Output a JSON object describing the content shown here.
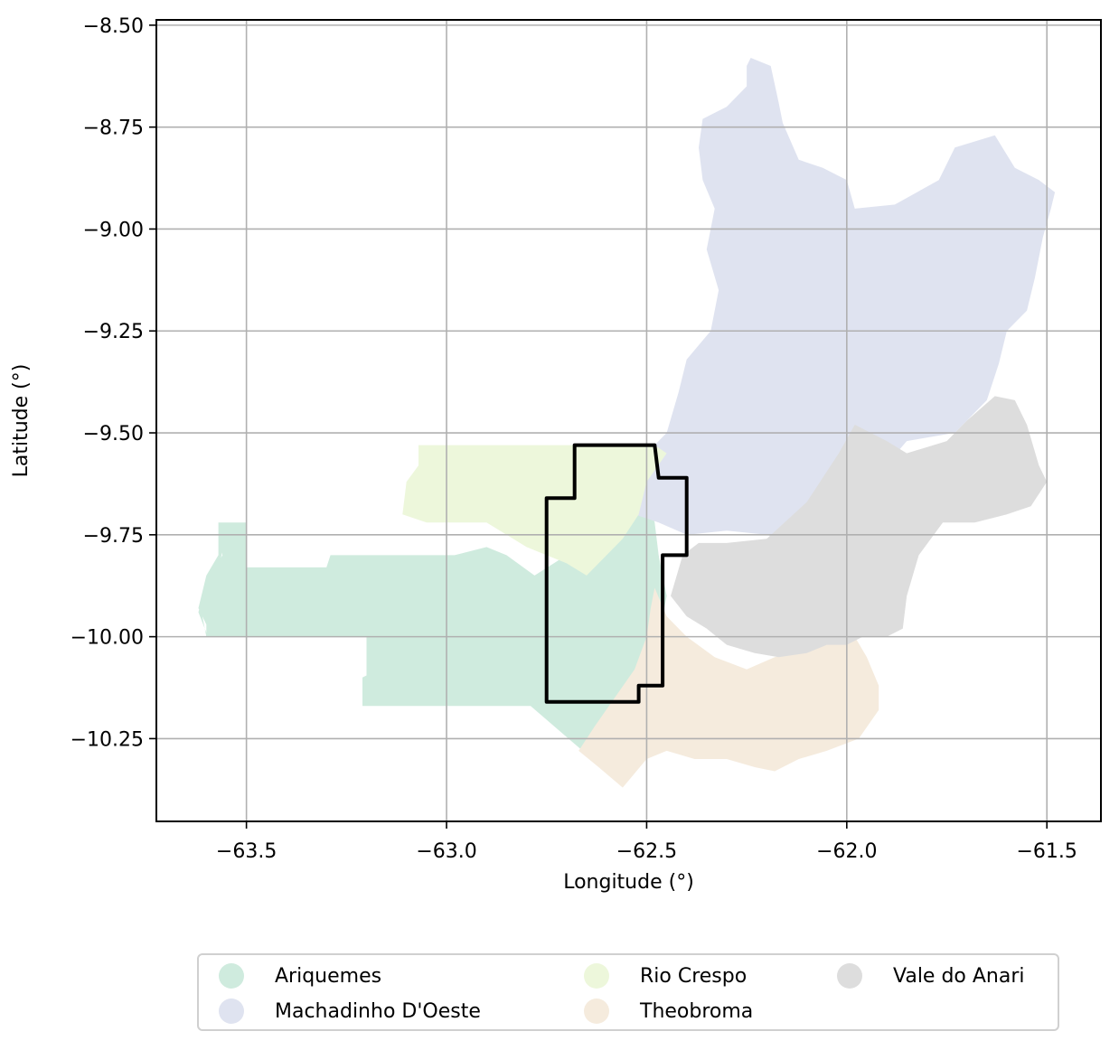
{
  "chart_data": {
    "type": "map",
    "xlabel": "Longitude (°)",
    "ylabel": "Latitude (°)",
    "xlim": [
      -63.725,
      -61.365
    ],
    "ylim": [
      -10.453,
      -8.487
    ],
    "xticks": [
      -63.5,
      -63.0,
      -62.5,
      -62.0,
      -61.5
    ],
    "xtick_labels": [
      "−63.5",
      "−63.0",
      "−62.5",
      "−62.0",
      "−61.5"
    ],
    "yticks": [
      -8.5,
      -8.75,
      -9.0,
      -9.25,
      -9.5,
      -9.75,
      -10.0,
      -10.25
    ],
    "ytick_labels": [
      "−8.50",
      "−8.75",
      "−9.00",
      "−9.25",
      "−9.50",
      "−9.75",
      "−10.00",
      "−10.25"
    ],
    "grid": true,
    "legend_placement": "bottom-center",
    "regions": [
      {
        "name": "Ariquemes",
        "color": "#cfebde",
        "polygon": [
          [
            -63.5,
            -9.72
          ],
          [
            -63.55,
            -9.72
          ],
          [
            -63.56,
            -9.79
          ],
          [
            -63.58,
            -9.88
          ],
          [
            -63.61,
            -9.95
          ],
          [
            -63.6,
            -10.0
          ],
          [
            -63.05,
            -10.0
          ],
          [
            -63.0,
            -10.04
          ],
          [
            -62.97,
            -10.14
          ],
          [
            -62.9,
            -10.1
          ],
          [
            -62.88,
            -10.05
          ],
          [
            -62.78,
            -10.04
          ],
          [
            -62.75,
            -10.02
          ],
          [
            -62.74,
            -9.88
          ],
          [
            -62.7,
            -9.75
          ],
          [
            -62.68,
            -9.75
          ],
          [
            -62.65,
            -9.85
          ],
          [
            -62.58,
            -9.85
          ],
          [
            -62.55,
            -9.75
          ],
          [
            -62.5,
            -9.74
          ],
          [
            -62.47,
            -9.87
          ],
          [
            -62.49,
            -9.98
          ],
          [
            -62.53,
            -10.1
          ],
          [
            -62.58,
            -10.2
          ],
          [
            -62.63,
            -10.25
          ],
          [
            -62.66,
            -10.28
          ],
          [
            -62.79,
            -10.17
          ],
          [
            -63.2,
            -10.17
          ],
          [
            -63.2,
            -10.0
          ],
          [
            -63.05,
            -10.0
          ],
          [
            -63.6,
            -10.0
          ],
          [
            -63.6,
            -9.97
          ],
          [
            -63.62,
            -9.93
          ],
          [
            -63.6,
            -9.85
          ],
          [
            -63.57,
            -9.8
          ],
          [
            -63.57,
            -9.72
          ],
          [
            -63.5,
            -9.72
          ],
          [
            -63.5,
            -9.83
          ],
          [
            -63.3,
            -9.83
          ],
          [
            -63.29,
            -9.8
          ],
          [
            -62.98,
            -9.8
          ],
          [
            -62.9,
            -9.78
          ],
          [
            -62.85,
            -9.8
          ],
          [
            -62.78,
            -9.85
          ],
          [
            -62.7,
            -9.8
          ],
          [
            -62.74,
            -9.73
          ],
          [
            -62.65,
            -9.7
          ],
          [
            -62.58,
            -9.62
          ],
          [
            -62.52,
            -9.55
          ],
          [
            -62.5,
            -9.65
          ],
          [
            -62.48,
            -9.72
          ],
          [
            -62.47,
            -9.8
          ],
          [
            -62.45,
            -9.9
          ],
          [
            -62.47,
            -10.0
          ],
          [
            -62.48,
            -10.1
          ],
          [
            -62.55,
            -10.2
          ],
          [
            -62.62,
            -10.25
          ],
          [
            -62.66,
            -10.28
          ],
          [
            -62.7,
            -10.24
          ],
          [
            -62.78,
            -10.17
          ],
          [
            -63.21,
            -10.17
          ],
          [
            -63.21,
            -10.1
          ],
          [
            -63.17,
            -10.08
          ],
          [
            -63.15,
            -10.0
          ],
          [
            -63.6,
            -10.0
          ],
          [
            -63.6,
            -9.99
          ],
          [
            -63.62,
            -9.94
          ],
          [
            -63.6,
            -9.87
          ],
          [
            -63.56,
            -9.8
          ],
          [
            -63.57,
            -9.72
          ]
        ]
      },
      {
        "name": "Machadinho D'Oeste",
        "color": "#dfe3f0",
        "polygon": [
          [
            -62.24,
            -8.58
          ],
          [
            -62.19,
            -8.6
          ],
          [
            -62.17,
            -8.69
          ],
          [
            -62.16,
            -8.74
          ],
          [
            -62.12,
            -8.83
          ],
          [
            -62.06,
            -8.85
          ],
          [
            -62.0,
            -8.88
          ],
          [
            -61.98,
            -8.95
          ],
          [
            -61.88,
            -8.94
          ],
          [
            -61.77,
            -8.88
          ],
          [
            -61.73,
            -8.8
          ],
          [
            -61.63,
            -8.77
          ],
          [
            -61.58,
            -8.85
          ],
          [
            -61.52,
            -8.88
          ],
          [
            -61.48,
            -8.91
          ],
          [
            -61.49,
            -8.95
          ],
          [
            -61.51,
            -9.02
          ],
          [
            -61.53,
            -9.12
          ],
          [
            -61.55,
            -9.2
          ],
          [
            -61.6,
            -9.25
          ],
          [
            -61.62,
            -9.33
          ],
          [
            -61.65,
            -9.42
          ],
          [
            -61.73,
            -9.5
          ],
          [
            -61.85,
            -9.52
          ],
          [
            -61.92,
            -9.6
          ],
          [
            -61.93,
            -9.72
          ],
          [
            -61.97,
            -9.78
          ],
          [
            -62.05,
            -9.8
          ],
          [
            -62.12,
            -9.78
          ],
          [
            -62.2,
            -9.75
          ],
          [
            -62.3,
            -9.74
          ],
          [
            -62.4,
            -9.75
          ],
          [
            -62.47,
            -9.72
          ],
          [
            -62.53,
            -9.7
          ],
          [
            -62.55,
            -9.65
          ],
          [
            -62.5,
            -9.55
          ],
          [
            -62.45,
            -9.5
          ],
          [
            -62.42,
            -9.4
          ],
          [
            -62.4,
            -9.32
          ],
          [
            -62.34,
            -9.25
          ],
          [
            -62.32,
            -9.15
          ],
          [
            -62.35,
            -9.05
          ],
          [
            -62.33,
            -8.95
          ],
          [
            -62.36,
            -8.88
          ],
          [
            -62.37,
            -8.8
          ],
          [
            -62.36,
            -8.73
          ],
          [
            -62.3,
            -8.7
          ],
          [
            -62.25,
            -8.65
          ],
          [
            -62.25,
            -8.6
          ]
        ]
      },
      {
        "name": "Rio Crespo",
        "color": "#edf7db",
        "polygon": [
          [
            -63.07,
            -9.53
          ],
          [
            -62.48,
            -9.53
          ],
          [
            -62.45,
            -9.55
          ],
          [
            -62.5,
            -9.62
          ],
          [
            -62.52,
            -9.7
          ],
          [
            -62.56,
            -9.76
          ],
          [
            -62.6,
            -9.8
          ],
          [
            -62.65,
            -9.85
          ],
          [
            -62.7,
            -9.82
          ],
          [
            -62.75,
            -9.8
          ],
          [
            -62.8,
            -9.78
          ],
          [
            -62.85,
            -9.75
          ],
          [
            -62.9,
            -9.72
          ],
          [
            -62.98,
            -9.72
          ],
          [
            -63.05,
            -9.72
          ],
          [
            -63.11,
            -9.7
          ],
          [
            -63.1,
            -9.62
          ],
          [
            -63.07,
            -9.58
          ]
        ]
      },
      {
        "name": "Theobroma",
        "color": "#f5ebdd",
        "polygon": [
          [
            -62.48,
            -9.88
          ],
          [
            -62.45,
            -9.95
          ],
          [
            -62.4,
            -10.0
          ],
          [
            -62.33,
            -10.05
          ],
          [
            -62.25,
            -10.08
          ],
          [
            -62.18,
            -10.05
          ],
          [
            -62.1,
            -10.03
          ],
          [
            -62.05,
            -10.0
          ],
          [
            -61.98,
            -10.0
          ],
          [
            -61.95,
            -10.05
          ],
          [
            -61.92,
            -10.12
          ],
          [
            -61.92,
            -10.18
          ],
          [
            -61.97,
            -10.25
          ],
          [
            -62.05,
            -10.28
          ],
          [
            -62.12,
            -10.3
          ],
          [
            -62.18,
            -10.33
          ],
          [
            -62.23,
            -10.32
          ],
          [
            -62.3,
            -10.3
          ],
          [
            -62.38,
            -10.3
          ],
          [
            -62.45,
            -10.28
          ],
          [
            -62.5,
            -10.3
          ],
          [
            -62.56,
            -10.37
          ],
          [
            -62.62,
            -10.32
          ],
          [
            -62.67,
            -10.28
          ],
          [
            -62.63,
            -10.22
          ],
          [
            -62.58,
            -10.15
          ],
          [
            -62.53,
            -10.08
          ],
          [
            -62.5,
            -10.0
          ],
          [
            -62.49,
            -9.93
          ]
        ]
      },
      {
        "name": "Vale do Anari",
        "color": "#dddddd",
        "polygon": [
          [
            -61.63,
            -9.41
          ],
          [
            -61.58,
            -9.42
          ],
          [
            -61.55,
            -9.48
          ],
          [
            -61.52,
            -9.58
          ],
          [
            -61.5,
            -9.62
          ],
          [
            -61.54,
            -9.68
          ],
          [
            -61.6,
            -9.7
          ],
          [
            -61.68,
            -9.72
          ],
          [
            -61.76,
            -9.72
          ],
          [
            -61.82,
            -9.8
          ],
          [
            -61.85,
            -9.9
          ],
          [
            -61.86,
            -9.98
          ],
          [
            -61.9,
            -10.0
          ],
          [
            -61.96,
            -10.0
          ],
          [
            -62.0,
            -10.02
          ],
          [
            -62.05,
            -10.02
          ],
          [
            -62.1,
            -10.04
          ],
          [
            -62.17,
            -10.05
          ],
          [
            -62.23,
            -10.04
          ],
          [
            -62.3,
            -10.02
          ],
          [
            -62.35,
            -9.98
          ],
          [
            -62.4,
            -9.95
          ],
          [
            -62.44,
            -9.9
          ],
          [
            -62.41,
            -9.8
          ],
          [
            -62.37,
            -9.77
          ],
          [
            -62.3,
            -9.77
          ],
          [
            -62.2,
            -9.76
          ],
          [
            -62.1,
            -9.67
          ],
          [
            -62.02,
            -9.55
          ],
          [
            -61.98,
            -9.48
          ],
          [
            -61.9,
            -9.52
          ],
          [
            -61.85,
            -9.55
          ],
          [
            -61.75,
            -9.52
          ],
          [
            -61.7,
            -9.47
          ]
        ]
      }
    ],
    "outline": {
      "color": "#000000",
      "polygon": [
        [
          -62.68,
          -9.53
        ],
        [
          -62.48,
          -9.53
        ],
        [
          -62.47,
          -9.61
        ],
        [
          -62.4,
          -9.61
        ],
        [
          -62.4,
          -9.8
        ],
        [
          -62.46,
          -9.8
        ],
        [
          -62.46,
          -10.12
        ],
        [
          -62.52,
          -10.12
        ],
        [
          -62.52,
          -10.16
        ],
        [
          -62.75,
          -10.16
        ],
        [
          -62.75,
          -9.66
        ],
        [
          -62.68,
          -9.66
        ]
      ]
    }
  },
  "legend": {
    "items": [
      {
        "label": "Ariquemes",
        "color": "#cfebde"
      },
      {
        "label": "Machadinho D'Oeste",
        "color": "#dfe3f0"
      },
      {
        "label": "Rio Crespo",
        "color": "#edf7db"
      },
      {
        "label": "Theobroma",
        "color": "#f5ebdd"
      },
      {
        "label": "Vale do Anari",
        "color": "#dddddd"
      }
    ]
  }
}
